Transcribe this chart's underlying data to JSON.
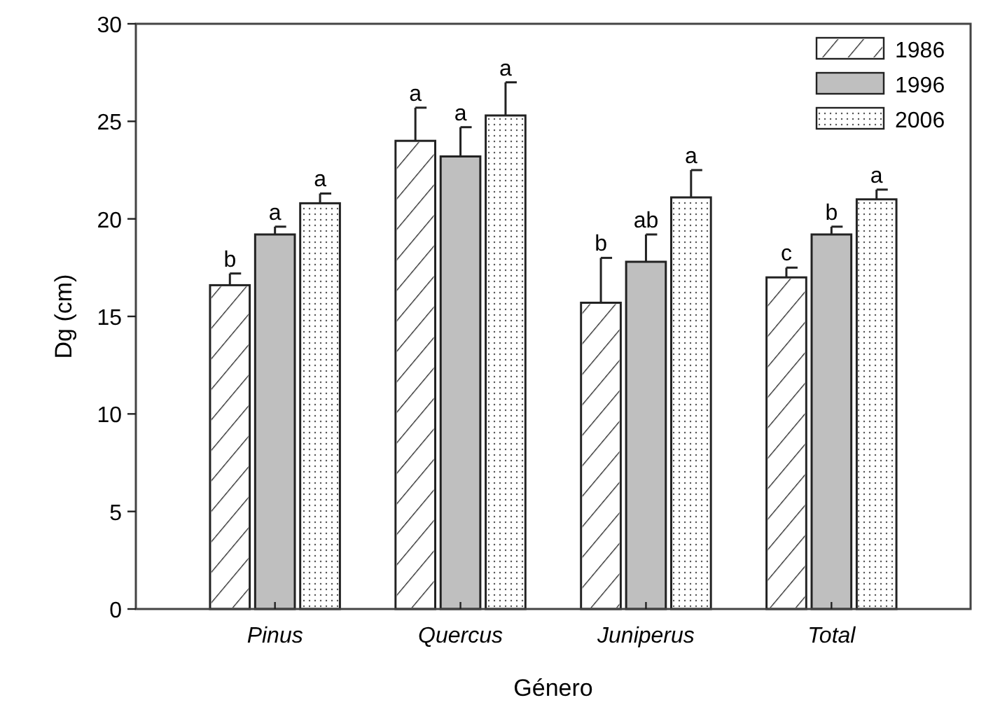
{
  "chart_data": {
    "type": "bar",
    "xlabel": "Género",
    "ylabel": "Dg (cm)",
    "categories": [
      "Pinus",
      "Quercus",
      "Juniperus",
      "Total"
    ],
    "series": [
      {
        "name": "1986",
        "color": "#ffffff",
        "values": [
          16.6,
          24.0,
          15.7,
          17.0
        ],
        "errors": [
          0.6,
          1.7,
          2.3,
          0.5
        ],
        "value_labels": [
          "b",
          "a",
          "b",
          "c"
        ]
      },
      {
        "name": "1996",
        "color": "#bfbfbf",
        "values": [
          19.2,
          23.2,
          17.8,
          19.2
        ],
        "errors": [
          0.4,
          1.5,
          1.4,
          0.4
        ],
        "value_labels": [
          "a",
          "a",
          "ab",
          "b"
        ]
      },
      {
        "name": "2006",
        "color": "#ffffff",
        "values": [
          20.8,
          25.3,
          21.1,
          21.0
        ],
        "errors": [
          0.5,
          1.7,
          1.4,
          0.5
        ],
        "value_labels": [
          "a",
          "a",
          "a",
          "a"
        ]
      }
    ],
    "ylim": [
      0,
      30
    ],
    "yticks": [
      0,
      5,
      10,
      15,
      20,
      25,
      30
    ],
    "legend": "top right",
    "grid": false
  }
}
